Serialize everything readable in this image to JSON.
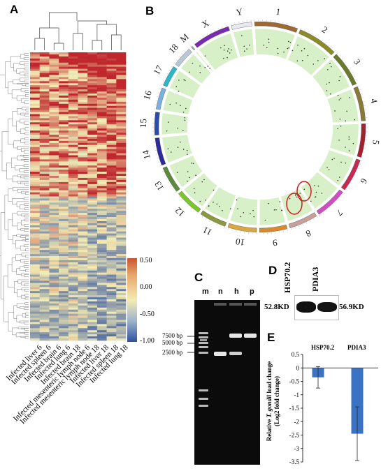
{
  "panels": {
    "A": {
      "label": "A",
      "columns": [
        "Infected liver 6",
        "Infected spleen 6",
        "Infected brain 6",
        "Infected lung 6",
        "Infected brain 18",
        "Infected mesenteric lymph node 6",
        "Infected mesenteric lymph node 18",
        "Infected liver 18",
        "Infected spleen 18",
        "Infected lung 18"
      ],
      "legend_values": [
        "0.50",
        "0.00",
        "-0.50",
        "-1.00"
      ],
      "colors": {
        "high": "#c0272d",
        "mid": "#f3ecb3",
        "low": "#2f4fa0"
      }
    },
    "B": {
      "label": "B",
      "chromosomes": [
        "1",
        "2",
        "3",
        "4",
        "5",
        "6",
        "7",
        "8",
        "9",
        "10",
        "11",
        "12",
        "13",
        "14",
        "15",
        "16",
        "17",
        "18",
        "M",
        "X",
        "Y"
      ],
      "chromosome_colors": [
        "#9c6a32",
        "#8b8b2a",
        "#6a7a2a",
        "#8a7a3a",
        "#a3202e",
        "#c52a52",
        "#d04ec0",
        "#c8a09a",
        "#d98a2a",
        "#d9a640",
        "#8a9a3a",
        "#7dc62a",
        "#5a8a3a",
        "#2c2c9a",
        "#2a4ea8",
        "#7ab0e0",
        "#2ab8c8",
        "#b8c8d8",
        "#9aa8b8",
        "#7a2ab0",
        "#e8e8f0"
      ],
      "track_color": "#d8f0c8"
    },
    "C": {
      "label": "C",
      "lanes": [
        "m",
        "n",
        "h",
        "p"
      ],
      "markers": [
        "7500 bp",
        "5000 bp",
        "2500 bp"
      ]
    },
    "D": {
      "label": "D",
      "proteins": [
        "HSP70.2",
        "PDIA3"
      ],
      "weights": [
        "52.8KD",
        "56.9KD"
      ]
    },
    "E": {
      "label": "E",
      "categories": [
        "HSP70.2",
        "PDIA3"
      ],
      "ylabel_line1": "Relative T. gondii load change",
      "ylabel_line2": "(Log2 fold change)",
      "yticks": [
        "0.5",
        "0",
        "-0.5",
        "-1",
        "-1.5",
        "-2",
        "-2.5",
        "-3",
        "-3.5"
      ]
    }
  },
  "chart_data": {
    "type": "bar",
    "categories": [
      "HSP70.2",
      "PDIA3"
    ],
    "values": [
      -0.35,
      -2.45
    ],
    "error": [
      0.4,
      1.0
    ],
    "ylabel": "Relative T. gondii load change (Log2 fold change)",
    "ylim": [
      -3.5,
      0.5
    ],
    "bar_color": "#3a72c4"
  }
}
